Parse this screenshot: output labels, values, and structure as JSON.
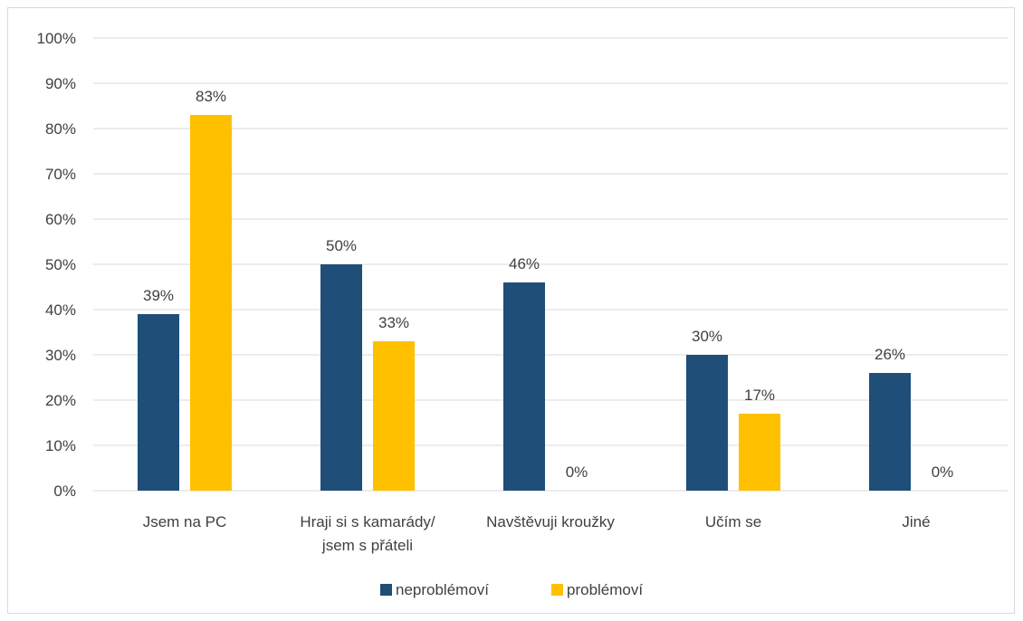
{
  "chart_data": {
    "type": "bar",
    "categories": [
      [
        "Jsem na PC"
      ],
      [
        "Hraji si s kamarády/",
        "jsem s přáteli"
      ],
      [
        "Navštěvuji kroužky"
      ],
      [
        "Učím se"
      ],
      [
        "Jiné"
      ]
    ],
    "series": [
      {
        "name": "neproblémoví",
        "values": [
          39,
          50,
          46,
          30,
          26
        ],
        "labels": [
          "39%",
          "50%",
          "46%",
          "30%",
          "26%"
        ],
        "color": "#1f4e79"
      },
      {
        "name": "problémoví",
        "values": [
          83,
          33,
          0,
          17,
          0
        ],
        "labels": [
          "83%",
          "33%",
          "0%",
          "17%",
          "0%"
        ],
        "color": "#ffc000"
      }
    ],
    "yticks": [
      "0%",
      "10%",
      "20%",
      "30%",
      "40%",
      "50%",
      "60%",
      "70%",
      "80%",
      "90%",
      "100%"
    ],
    "ylim": [
      0,
      100
    ],
    "grid": true,
    "legend": "bottom-center",
    "gridColor": "#d9d9d9"
  }
}
